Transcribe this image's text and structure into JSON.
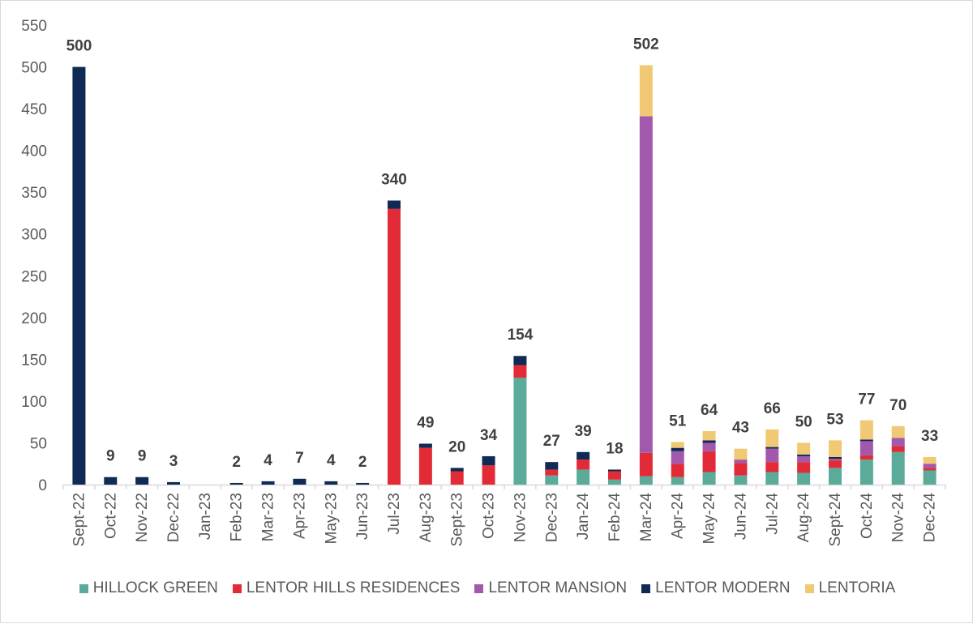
{
  "chart_data": {
    "type": "bar",
    "stacked": true,
    "title": "",
    "xlabel": "",
    "ylabel": "",
    "ylim": [
      0,
      550
    ],
    "yticks": [
      0,
      50,
      100,
      150,
      200,
      250,
      300,
      350,
      400,
      450,
      500,
      550
    ],
    "grid": false,
    "legend_position": "bottom",
    "categories": [
      "Sept-22",
      "Oct-22",
      "Nov-22",
      "Dec-22",
      "Jan-23",
      "Feb-23",
      "Mar-23",
      "Apr-23",
      "May-23",
      "Jun-23",
      "Jul-23",
      "Aug-23",
      "Sept-23",
      "Oct-23",
      "Nov-23",
      "Dec-23",
      "Jan-24",
      "Feb-24",
      "Mar-24",
      "Apr-24",
      "May-24",
      "Jun-24",
      "Jul-24",
      "Aug-24",
      "Sept-24",
      "Oct-24",
      "Nov-24",
      "Dec-24"
    ],
    "series": [
      {
        "name": "HILLOCK GREEN",
        "color": "#5aab9a",
        "values": [
          0,
          0,
          0,
          0,
          0,
          0,
          0,
          0,
          0,
          0,
          0,
          0,
          0,
          0,
          128,
          11,
          18,
          6,
          10,
          9,
          15,
          11,
          15,
          14,
          20,
          30,
          39,
          17
        ]
      },
      {
        "name": "LENTOR HILLS RESIDENCES",
        "color": "#e22b36",
        "values": [
          0,
          0,
          0,
          0,
          0,
          0,
          0,
          0,
          0,
          0,
          330,
          44,
          16,
          23,
          15,
          7,
          12,
          10,
          28,
          16,
          25,
          15,
          12,
          13,
          9,
          5,
          7,
          3
        ]
      },
      {
        "name": "LENTOR MANSION",
        "color": "#a259ac",
        "values": [
          0,
          0,
          0,
          0,
          0,
          0,
          0,
          0,
          0,
          0,
          0,
          0,
          0,
          0,
          0,
          0,
          0,
          0,
          403,
          15,
          10,
          4,
          16,
          7,
          2,
          17,
          10,
          5
        ]
      },
      {
        "name": "LENTOR MODERN",
        "color": "#0f2a55",
        "values": [
          500,
          9,
          9,
          3,
          0,
          2,
          4,
          7,
          4,
          2,
          10,
          5,
          4,
          11,
          11,
          9,
          9,
          2,
          0,
          4,
          3,
          0,
          2,
          2,
          2,
          2,
          0,
          0
        ]
      },
      {
        "name": "LENTORIA",
        "color": "#f1c873",
        "values": [
          0,
          0,
          0,
          0,
          0,
          0,
          0,
          0,
          0,
          0,
          0,
          0,
          0,
          0,
          0,
          0,
          0,
          0,
          61,
          7,
          11,
          13,
          21,
          14,
          20,
          23,
          14,
          8
        ]
      }
    ],
    "totals": [
      "500",
      "9",
      "9",
      "3",
      "",
      "2",
      "4",
      "7",
      "4",
      "2",
      "340",
      "49",
      "20",
      "34",
      "154",
      "27",
      "39",
      "18",
      "502",
      "51",
      "64",
      "43",
      "66",
      "50",
      "53",
      "77",
      "70",
      "33"
    ]
  }
}
